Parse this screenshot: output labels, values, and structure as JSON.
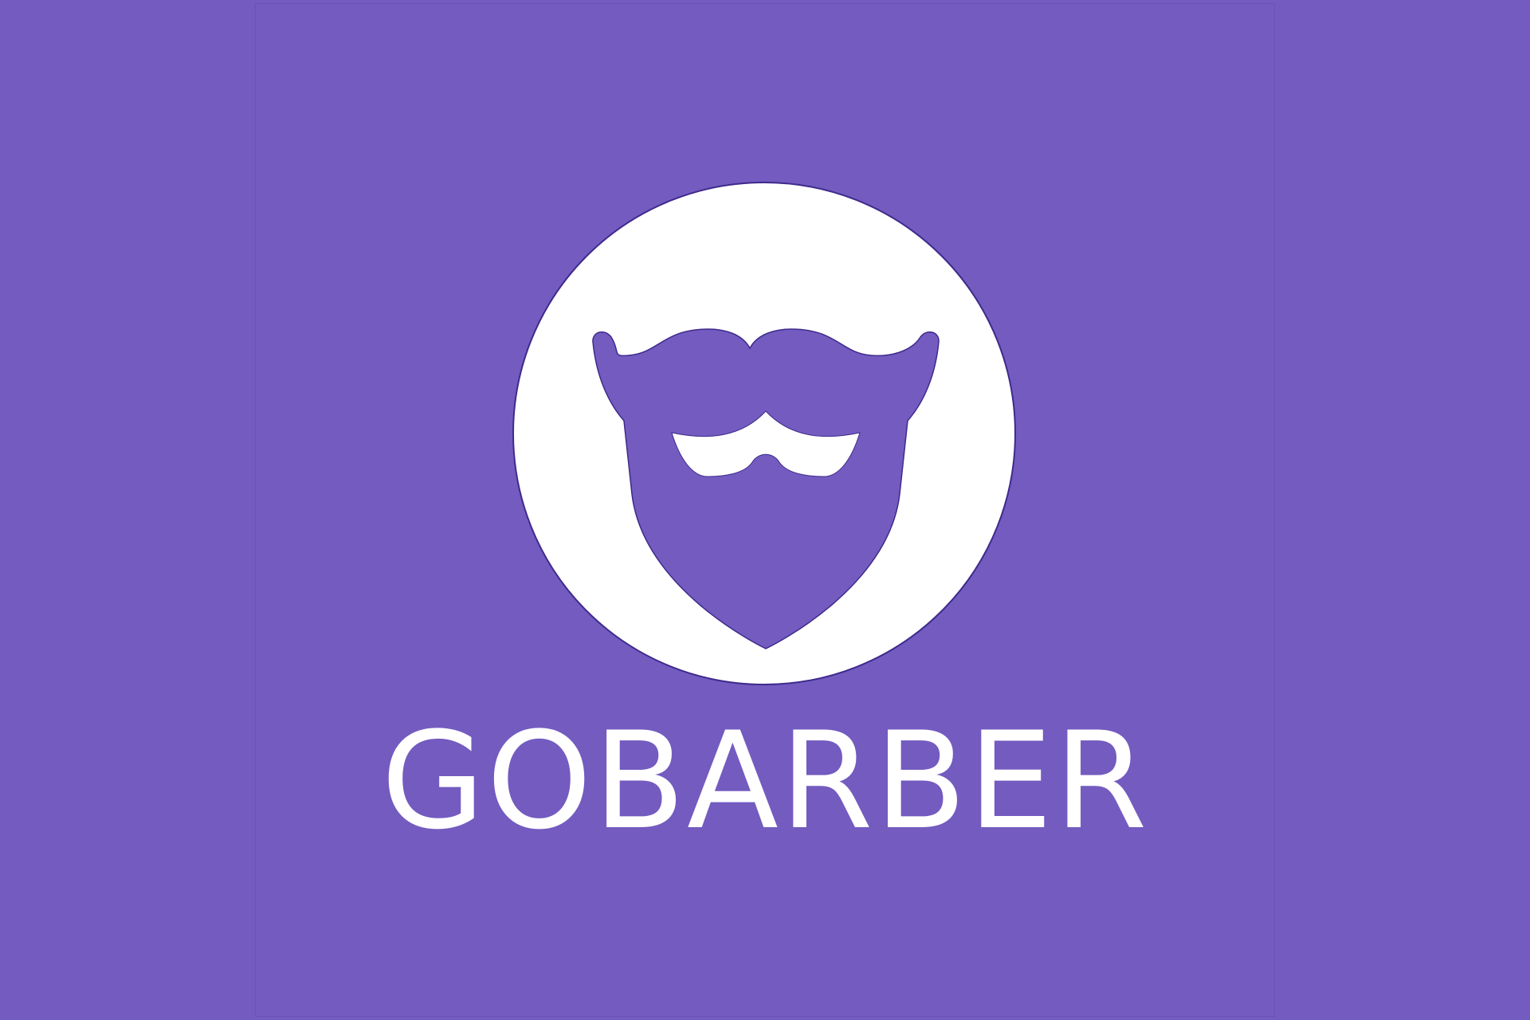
{
  "brand": {
    "name": "GOBARBER",
    "icon": "beard-icon",
    "colors": {
      "background": "#735bc0",
      "emblem_fill": "#ffffff",
      "icon_fill": "#735bc0",
      "wordmark": "#ffffff"
    }
  }
}
